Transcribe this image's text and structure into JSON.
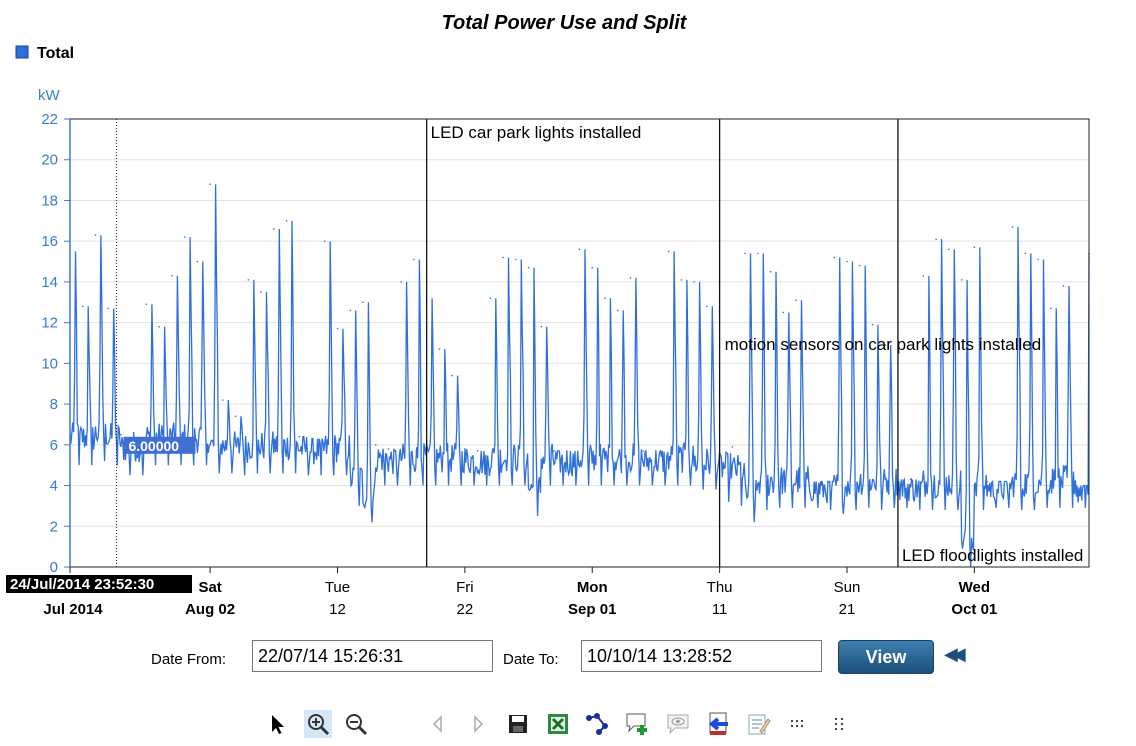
{
  "chart_data": {
    "type": "line",
    "title": "Total Power Use and Split",
    "ylabel": "kW",
    "xlabel": "",
    "ylim": [
      0,
      22
    ],
    "yticks": [
      0,
      2,
      4,
      6,
      8,
      10,
      12,
      14,
      16,
      18,
      20,
      22
    ],
    "grid": true,
    "legend_position": "top-left",
    "series": [
      {
        "name": "Total",
        "color": "#2f6fdb",
        "x": [
          "2014-07-22",
          "2014-07-23",
          "2014-07-24",
          "2014-07-25",
          "2014-07-26",
          "2014-07-27",
          "2014-07-28",
          "2014-07-29",
          "2014-07-30",
          "2014-07-31",
          "2014-08-01",
          "2014-08-02",
          "2014-08-03",
          "2014-08-04",
          "2014-08-05",
          "2014-08-06",
          "2014-08-07",
          "2014-08-08",
          "2014-08-09",
          "2014-08-10",
          "2014-08-11",
          "2014-08-12",
          "2014-08-13",
          "2014-08-14",
          "2014-08-15",
          "2014-08-16",
          "2014-08-17",
          "2014-08-18",
          "2014-08-19",
          "2014-08-20",
          "2014-08-21",
          "2014-08-22",
          "2014-08-23",
          "2014-08-24",
          "2014-08-25",
          "2014-08-26",
          "2014-08-27",
          "2014-08-28",
          "2014-08-29",
          "2014-08-30",
          "2014-08-31",
          "2014-09-01",
          "2014-09-02",
          "2014-09-03",
          "2014-09-04",
          "2014-09-05",
          "2014-09-06",
          "2014-09-07",
          "2014-09-08",
          "2014-09-09",
          "2014-09-10",
          "2014-09-11",
          "2014-09-12",
          "2014-09-13",
          "2014-09-14",
          "2014-09-15",
          "2014-09-16",
          "2014-09-17",
          "2014-09-18",
          "2014-09-19",
          "2014-09-20",
          "2014-09-21",
          "2014-09-22",
          "2014-09-23",
          "2014-09-24",
          "2014-09-25",
          "2014-09-26",
          "2014-09-27",
          "2014-09-28",
          "2014-09-29",
          "2014-09-30",
          "2014-10-01",
          "2014-10-02",
          "2014-10-03",
          "2014-10-04",
          "2014-10-05",
          "2014-10-06",
          "2014-10-07",
          "2014-10-08",
          "2014-10-09",
          "2014-10-10"
        ],
        "max": [
          15.5,
          12.8,
          16.3,
          12.7,
          6.5,
          6.6,
          12.9,
          11.8,
          14.3,
          16.2,
          15.0,
          18.8,
          8.2,
          7.4,
          14.1,
          13.5,
          16.6,
          17.0,
          6.4,
          6.3,
          16.0,
          11.7,
          12.6,
          13.0,
          6.0,
          5.8,
          14.0,
          15.1,
          13.2,
          10.7,
          9.4,
          5.8,
          5.7,
          13.2,
          15.2,
          15.1,
          14.7,
          11.8,
          5.7,
          5.7,
          15.6,
          14.7,
          13.2,
          12.6,
          14.2,
          5.7,
          5.7,
          15.5,
          14.1,
          14.0,
          12.8,
          5.9,
          5.9,
          15.4,
          15.4,
          14.5,
          12.5,
          13.1,
          4.2,
          4.2,
          15.2,
          15.0,
          14.8,
          11.9,
          10.9,
          4.3,
          4.3,
          14.3,
          16.1,
          15.6,
          14.1,
          15.7,
          4.2,
          4.2,
          16.7,
          15.4,
          15.1,
          12.7,
          13.8,
          4.0,
          15.4
        ],
        "min": [
          5.0,
          5.0,
          5.2,
          5.0,
          4.5,
          4.5,
          5.0,
          5.0,
          5.0,
          5.0,
          5.0,
          4.6,
          4.6,
          4.5,
          4.6,
          4.6,
          4.6,
          4.6,
          4.5,
          4.5,
          4.5,
          4.5,
          3.0,
          2.2,
          4.0,
          4.0,
          4.0,
          4.0,
          4.0,
          4.0,
          4.0,
          4.0,
          4.0,
          4.0,
          4.0,
          4.0,
          2.5,
          4.0,
          4.0,
          4.0,
          4.0,
          4.0,
          4.0,
          4.0,
          4.0,
          4.0,
          4.0,
          4.0,
          4.0,
          3.8,
          3.8,
          3.2,
          3.0,
          2.2,
          2.8,
          2.9,
          2.9,
          2.9,
          2.9,
          2.8,
          2.6,
          2.8,
          2.9,
          2.8,
          2.9,
          2.9,
          2.8,
          2.8,
          2.8,
          2.8,
          0.0,
          2.8,
          2.9,
          2.9,
          2.8,
          2.8,
          2.9,
          2.9,
          2.9,
          2.9,
          3.0
        ]
      }
    ],
    "annotations": [
      {
        "date": "2014-08-19",
        "text": "LED car park lights installed"
      },
      {
        "date": "2014-09-11",
        "text": "motion sensors on car park lights installed"
      },
      {
        "date": "2014-09-25",
        "text": "LED floodlights installed"
      }
    ],
    "xticks": [
      {
        "date": "2014-07-22",
        "top": "",
        "bottom": "Jul 2014"
      },
      {
        "date": "2014-08-02",
        "top": "Sat",
        "bottom": "Aug 02",
        "bold": true
      },
      {
        "date": "2014-08-12",
        "top": "Tue",
        "bottom": "12"
      },
      {
        "date": "2014-08-22",
        "top": "Fri",
        "bottom": "22"
      },
      {
        "date": "2014-09-01",
        "top": "Mon",
        "bottom": "Sep 01",
        "bold": true
      },
      {
        "date": "2014-09-11",
        "top": "Thu",
        "bottom": "11"
      },
      {
        "date": "2014-09-21",
        "top": "Sun",
        "bottom": "21"
      },
      {
        "date": "2014-10-01",
        "top": "Wed",
        "bottom": "Oct 01",
        "bold": true
      }
    ],
    "cursor": {
      "date": "2014-07-24",
      "datetime_label": "24/Jul/2014 23:52:30",
      "value": 6.0,
      "value_label": "6.00000"
    }
  },
  "controls": {
    "date_from_label": "Date From:",
    "date_from_value": "22/07/14 15:26:31",
    "date_to_label": "Date To:",
    "date_to_value": "10/10/14 13:28:52",
    "view_label": "View",
    "rewind_glyph": "◀◀"
  },
  "toolbar": {
    "icons": [
      "pointer-icon",
      "zoom-in-icon",
      "zoom-out-icon",
      "previous-icon",
      "next-icon",
      "save-icon",
      "excel-export-icon",
      "connect-points-icon",
      "add-comment-icon",
      "view-comments-icon",
      "import-icon",
      "edit-notes-icon",
      "grid-small-icon",
      "grid-large-icon"
    ]
  }
}
